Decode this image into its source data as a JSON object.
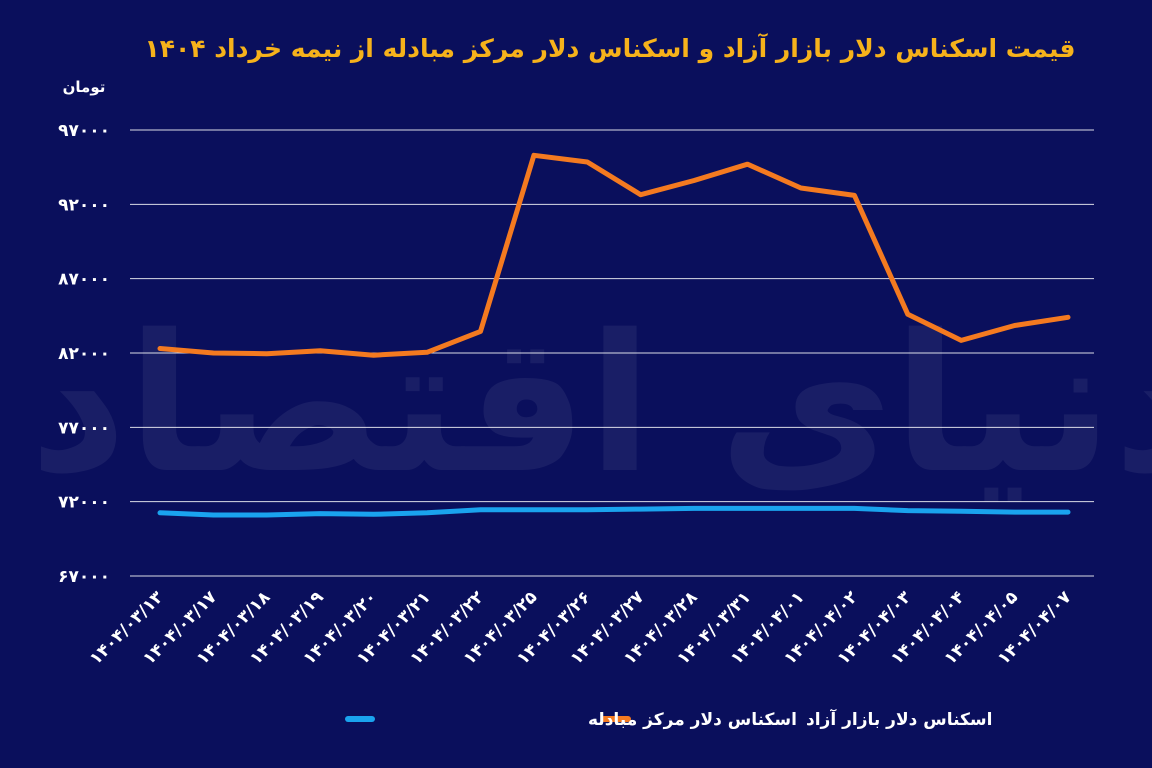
{
  "chart_data": {
    "type": "line",
    "title": "قیمت اسکناس دلار بازار آزاد و اسکناس دلار مرکز مبادله از نیمه خرداد ۱۴۰۴",
    "ylabel": "تومان",
    "ylim": [
      67000,
      97000
    ],
    "yticks": [
      "۶۷۰۰۰",
      "۷۲۰۰۰",
      "۷۷۰۰۰",
      "۸۲۰۰۰",
      "۸۷۰۰۰",
      "۹۲۰۰۰",
      "۹۷۰۰۰"
    ],
    "ytick_values": [
      67000,
      72000,
      77000,
      82000,
      87000,
      92000,
      97000
    ],
    "categories": [
      "۱۴۰۴/۰۳/۱۳",
      "۱۴۰۴/۰۳/۱۷",
      "۱۴۰۴/۰۳/۱۸",
      "۱۴۰۴/۰۳/۱۹",
      "۱۴۰۴/۰۳/۲۰",
      "۱۴۰۴/۰۳/۲۱",
      "۱۴۰۴/۰۳/۲۲",
      "۱۴۰۴/۰۳/۲۵",
      "۱۴۰۴/۰۳/۲۶",
      "۱۴۰۴/۰۳/۲۷",
      "۱۴۰۴/۰۳/۲۸",
      "۱۴۰۴/۰۳/۳۱",
      "۱۴۰۴/۰۴/۰۱",
      "۱۴۰۴/۰۴/۰۲",
      "۱۴۰۴/۰۴/۰۳",
      "۱۴۰۴/۰۴/۰۴",
      "۱۴۰۴/۰۴/۰۵",
      "۱۴۰۴/۰۴/۰۷"
    ],
    "series": [
      {
        "name": "اسکناس دلار بازار آزاد",
        "color": "#f47a20",
        "values": [
          82300,
          82000,
          81950,
          82150,
          81850,
          82050,
          83450,
          95300,
          94850,
          92650,
          93600,
          94700,
          93100,
          92600,
          84600,
          82850,
          83850,
          84400
        ]
      },
      {
        "name": "اسکناس دلار مرکز مبادله",
        "color": "#1aa3ee",
        "values": [
          71250,
          71100,
          71100,
          71200,
          71150,
          71250,
          71450,
          71450,
          71450,
          71500,
          71550,
          71550,
          71550,
          71550,
          71400,
          71350,
          71300,
          71300
        ]
      }
    ],
    "grid": true,
    "legend_position": "bottom-center"
  },
  "watermark": "دنیای اقتصاد"
}
